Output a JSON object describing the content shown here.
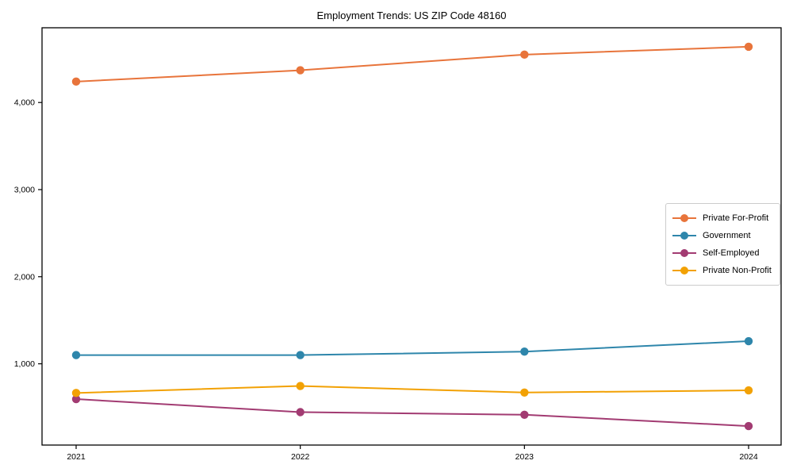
{
  "chart_data": {
    "type": "line",
    "title": "Employment Trends: US ZIP Code 48160",
    "categories": [
      "2021",
      "2022",
      "2023",
      "2024"
    ],
    "series": [
      {
        "name": "Private For-Profit",
        "color": "#E8743B",
        "values": [
          4240,
          4370,
          4550,
          4640
        ]
      },
      {
        "name": "Government",
        "color": "#2E86AB",
        "values": [
          1100,
          1100,
          1140,
          1260
        ]
      },
      {
        "name": "Self-Employed",
        "color": "#A23B72",
        "values": [
          595,
          445,
          415,
          285
        ]
      },
      {
        "name": "Private Non-Profit",
        "color": "#F2A104",
        "values": [
          665,
          745,
          670,
          695
        ]
      }
    ],
    "xlabel": "",
    "ylabel": "",
    "y_ticks": [
      {
        "value": 1000,
        "label": "1,000"
      },
      {
        "value": 2000,
        "label": "2,000"
      },
      {
        "value": 3000,
        "label": "3,000"
      },
      {
        "value": 4000,
        "label": "4,000"
      }
    ],
    "ylim": [
      67,
      4858
    ],
    "grid": false,
    "legend_position": "center-right",
    "axis_color": "#000000",
    "background_color": "#ffffff"
  }
}
